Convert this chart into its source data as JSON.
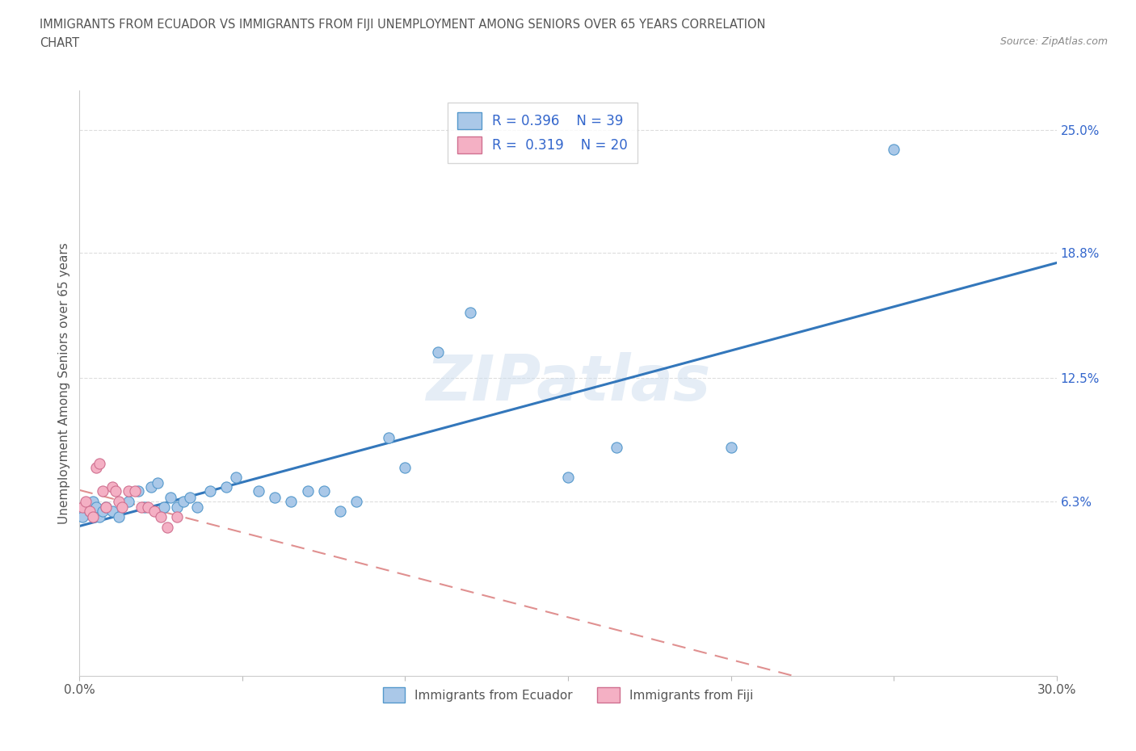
{
  "title_line1": "IMMIGRANTS FROM ECUADOR VS IMMIGRANTS FROM FIJI UNEMPLOYMENT AMONG SENIORS OVER 65 YEARS CORRELATION",
  "title_line2": "CHART",
  "source": "Source: ZipAtlas.com",
  "ylabel": "Unemployment Among Seniors over 65 years",
  "watermark": "ZIPatlas",
  "xlim": [
    0.0,
    0.3
  ],
  "ylim": [
    -0.025,
    0.27
  ],
  "xticks": [
    0.0,
    0.05,
    0.1,
    0.15,
    0.2,
    0.25,
    0.3
  ],
  "xticklabels": [
    "0.0%",
    "",
    "",
    "",
    "",
    "",
    "30.0%"
  ],
  "ytick_positions": [
    0.063,
    0.125,
    0.188,
    0.25
  ],
  "ytick_labels": [
    "6.3%",
    "12.5%",
    "18.8%",
    "25.0%"
  ],
  "ecuador_color": "#aac8e8",
  "fiji_color": "#f4b0c4",
  "ecuador_edge_color": "#5599cc",
  "fiji_edge_color": "#d07090",
  "ecuador_line_color": "#3377bb",
  "fiji_line_color": "#e09090",
  "legend_text_color": "#3366cc",
  "R_ecuador": 0.396,
  "N_ecuador": 39,
  "R_fiji": 0.319,
  "N_fiji": 20,
  "ecuador_x": [
    0.001,
    0.002,
    0.003,
    0.004,
    0.005,
    0.006,
    0.007,
    0.008,
    0.01,
    0.012,
    0.015,
    0.018,
    0.02,
    0.022,
    0.024,
    0.026,
    0.028,
    0.03,
    0.032,
    0.034,
    0.036,
    0.04,
    0.045,
    0.048,
    0.055,
    0.06,
    0.065,
    0.07,
    0.075,
    0.08,
    0.085,
    0.095,
    0.1,
    0.11,
    0.12,
    0.15,
    0.165,
    0.2,
    0.25
  ],
  "ecuador_y": [
    0.055,
    0.06,
    0.058,
    0.063,
    0.06,
    0.055,
    0.058,
    0.06,
    0.058,
    0.055,
    0.063,
    0.068,
    0.06,
    0.07,
    0.072,
    0.06,
    0.065,
    0.06,
    0.063,
    0.065,
    0.06,
    0.068,
    0.07,
    0.075,
    0.068,
    0.065,
    0.063,
    0.068,
    0.068,
    0.058,
    0.063,
    0.095,
    0.08,
    0.138,
    0.158,
    0.075,
    0.09,
    0.09,
    0.24
  ],
  "fiji_x": [
    0.001,
    0.002,
    0.003,
    0.004,
    0.005,
    0.006,
    0.007,
    0.008,
    0.01,
    0.011,
    0.012,
    0.013,
    0.015,
    0.017,
    0.019,
    0.021,
    0.023,
    0.025,
    0.027,
    0.03
  ],
  "fiji_y": [
    0.06,
    0.063,
    0.058,
    0.055,
    0.08,
    0.082,
    0.068,
    0.06,
    0.07,
    0.068,
    0.063,
    0.06,
    0.068,
    0.068,
    0.06,
    0.06,
    0.058,
    0.055,
    0.05,
    0.055
  ],
  "background_color": "#ffffff",
  "plot_bg_color": "#ffffff",
  "grid_color": "#dddddd"
}
